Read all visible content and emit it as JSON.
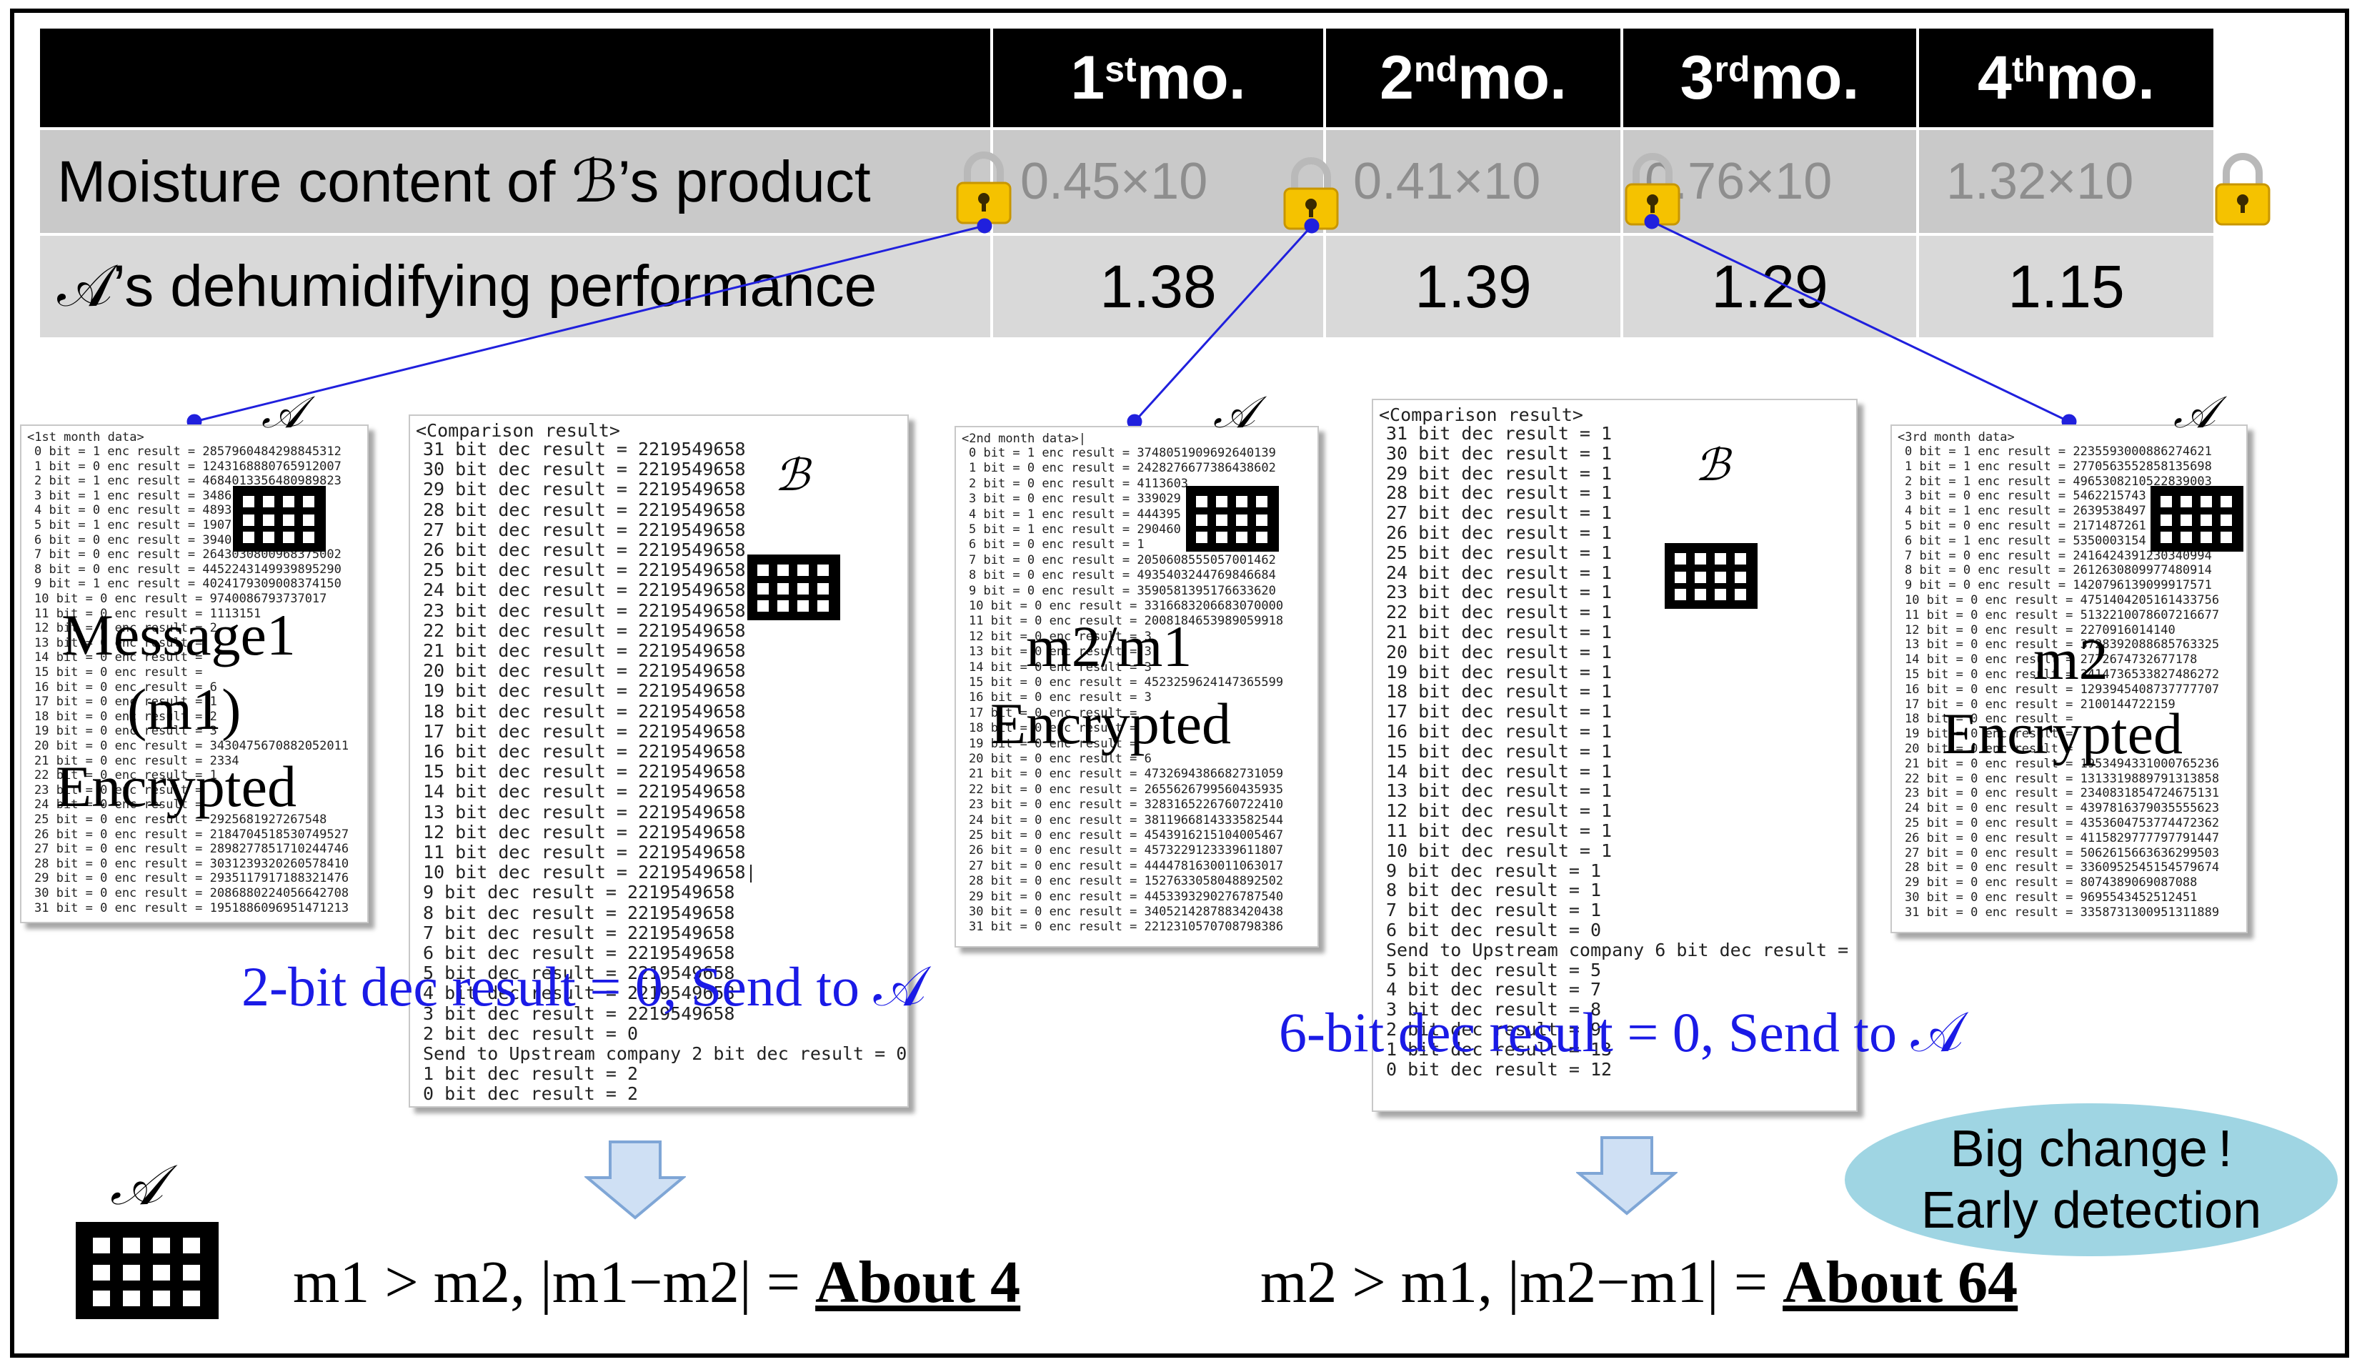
{
  "table": {
    "headers": [
      "",
      "1",
      "2",
      "3",
      "4"
    ],
    "header_suffix": [
      "",
      "st",
      "nd",
      "rd",
      "th"
    ],
    "header_unit": [
      "",
      " mo.",
      " mo.",
      " mo.",
      " mo."
    ],
    "row1_label": "Moisture content of ℬ’s product",
    "row1_values": [
      "0.45×10",
      "0.41×10",
      "0.76×10",
      "1.32×10"
    ],
    "row2_label": "𝒜’s dehumidifying performance",
    "row2_values": [
      "1.38",
      "1.39",
      "1.29",
      "1.15"
    ]
  },
  "panels": {
    "p1": {
      "header": "<1st month data>",
      "owner": "𝒜",
      "lines": [
        "0 bit = 1 enc result = 2857960484298845312",
        "1 bit = 0 enc result = 1243168880765912007",
        "2 bit = 1 enc result = 4684013356480989823",
        "3 bit = 1 enc result = 3486",
        "4 bit = 0 enc result = 4893",
        "5 bit = 1 enc result = 1907",
        "6 bit = 0 enc result = 3940",
        "7 bit = 0 enc result = 2643030800968375002",
        "8 bit = 0 enc result = 4452243149939895290",
        "9 bit = 1 enc result = 4024179309008374150",
        "10 bit = 0 enc result = 9740086793737017",
        "11 bit = 0 enc result = 1113151",
        "12 bit = 0 enc result = 2",
        "13 bit = 0 enc result =",
        "14 bit = 0 enc result =",
        "15 bit = 0 enc result =",
        "16 bit = 0 enc result = 6",
        "17 bit = 0 enc result = 1",
        "18 bit = 0 enc result = 2",
        "19 bit = 0 enc result = 3",
        "20 bit = 0 enc result = 3430475670882052011",
        "21 bit = 0 enc result = 2334",
        "22 bit = 0 enc result = 1",
        "23 bit = 0 enc result =",
        "24 bit = 0 enc result =",
        "25 bit = 0 enc result = 2925681927267548",
        "26 bit = 0 enc result = 2184704518530749527",
        "27 bit = 0 enc result = 2898277851710244746",
        "28 bit = 0 enc result = 3031239320260578410",
        "29 bit = 0 enc result = 2935117917188321476",
        "30 bit = 0 enc result = 2086880224056642708",
        "31 bit = 0 enc result = 1951886096951471213"
      ],
      "overlay": [
        "Message1",
        "(m1)",
        "Encrypted"
      ]
    },
    "p2": {
      "header": "<Comparison result>",
      "owner": "ℬ",
      "lines": [
        "31 bit dec result = 2219549658",
        "30 bit dec result = 2219549658",
        "29 bit dec result = 2219549658",
        "28 bit dec result = 2219549658",
        "27 bit dec result = 2219549658",
        "26 bit dec result = 2219549658",
        "25 bit dec result = 2219549658",
        "24 bit dec result = 2219549658",
        "23 bit dec result = 2219549658",
        "22 bit dec result = 2219549658",
        "21 bit dec result = 2219549658",
        "20 bit dec result = 2219549658",
        "19 bit dec result = 2219549658",
        "18 bit dec result = 2219549658",
        "17 bit dec result = 2219549658",
        "16 bit dec result = 2219549658",
        "15 bit dec result = 2219549658",
        "14 bit dec result = 2219549658",
        "13 bit dec result = 2219549658",
        "12 bit dec result = 2219549658",
        "11 bit dec result = 2219549658",
        "10 bit dec result = 2219549658|",
        "9 bit dec result = 2219549658",
        "8 bit dec result = 2219549658",
        "7 bit dec result = 2219549658",
        "6 bit dec result = 2219549658",
        "5 bit dec result = 2219549658",
        "4 bit dec result = 2219549658",
        "3 bit dec result = 2219549658",
        "2 bit dec result = 0",
        "Send to Upstream company 2 bit dec result = 0",
        "1 bit dec result = 2",
        "0 bit dec result = 2"
      ]
    },
    "p3": {
      "header": "<2nd month data>|",
      "owner": "𝒜",
      "lines": [
        "0 bit = 1 enc result = 3748051909692640139",
        "1 bit = 0 enc result = 2428276677386438602",
        "2 bit = 0 enc result = 4113603",
        "3 bit = 0 enc result = 339029",
        "4 bit = 1 enc result = 444395",
        "5 bit = 1 enc result = 290460",
        "6 bit = 0 enc result = 1",
        "7 bit = 0 enc result = 2050608555057001462",
        "8 bit = 0 enc result = 4935403244769846684",
        "9 bit = 0 enc result = 3590581395176633620",
        "10 bit = 0 enc result = 3316683206683070000",
        "11 bit = 0 enc result = 2008184653989059918",
        "12 bit = 0 enc result = 3",
        "13 bit = 0 enc result = 3",
        "14 bit = 0 enc result = 3",
        "15 bit = 0 enc result = 4523259624147365599",
        "16 bit = 0 enc result = 3",
        "17 bit = 0 enc result =",
        "18 bit = 0 enc result =",
        "19 bit = 0 enc result =",
        "20 bit = 0 enc result = 6",
        "21 bit = 0 enc result = 4732694386682731059",
        "22 bit = 0 enc result = 2655626799560435935",
        "23 bit = 0 enc result = 3283165226760722410",
        "24 bit = 0 enc result = 3811966814333582544",
        "25 bit = 0 enc result = 4543916215104005467",
        "26 bit = 0 enc result = 4573229123339611807",
        "27 bit = 0 enc result = 4444781630011063017",
        "28 bit = 0 enc result = 1527633058048892502",
        "29 bit = 0 enc result = 4453393290276787540",
        "30 bit = 0 enc result = 3405214287883420438",
        "31 bit = 0 enc result = 2212310570708798386"
      ],
      "overlay": [
        "m2/m1",
        "Encrypted"
      ]
    },
    "p4": {
      "header": "<Comparison result>",
      "owner": "ℬ",
      "lines": [
        "31 bit dec result = 1",
        "30 bit dec result = 1",
        "29 bit dec result = 1",
        "28 bit dec result = 1",
        "27 bit dec result = 1",
        "26 bit dec result = 1",
        "25 bit dec result = 1",
        "24 bit dec result = 1",
        "23 bit dec result = 1",
        "22 bit dec result = 1",
        "21 bit dec result = 1",
        "20 bit dec result = 1",
        "19 bit dec result = 1",
        "18 bit dec result = 1",
        "17 bit dec result = 1",
        "16 bit dec result = 1",
        "15 bit dec result = 1",
        "14 bit dec result = 1",
        "13 bit dec result = 1",
        "12 bit dec result = 1",
        "11 bit dec result = 1",
        "10 bit dec result = 1",
        "9 bit dec result = 1",
        "8 bit dec result = 1",
        "7 bit dec result = 1",
        "6 bit dec result = 0",
        "Send to Upstream company 6 bit dec result = 0",
        "5 bit dec result = 5",
        "4 bit dec result = 7",
        "3 bit dec result = 8",
        "2 bit dec result = 9",
        "1 bit dec result = 13",
        "0 bit dec result = 12"
      ]
    },
    "p5": {
      "header": "<3rd month data>",
      "owner": "𝒜",
      "lines": [
        "0 bit = 1 enc result = 2235593000886274621",
        "1 bit = 1 enc result = 2770563552858135698",
        "2 bit = 1 enc result = 4965308210522839003",
        "3 bit = 0 enc result = 5462215743",
        "4 bit = 1 enc result = 2639538497",
        "5 bit = 0 enc result = 2171487261",
        "6 bit = 1 enc result = 5350003154",
        "7 bit = 0 enc result = 2416424391230340994",
        "8 bit = 0 enc result = 2612630809977480914",
        "9 bit = 0 enc result = 1420796139099917571",
        "10 bit = 0 enc result = 4751404205161433756",
        "11 bit = 0 enc result = 5132210078607216677",
        "12 bit = 0 enc result = 2270916014140",
        "13 bit = 0 enc result = 3728392088685763325",
        "14 bit = 0 enc result = 2772674732677178",
        "15 bit = 0 enc result = 3414736533827486272",
        "16 bit = 0 enc result = 1293945408737777707",
        "17 bit = 0 enc result = 2100144722159",
        "18 bit = 0 enc result =",
        "19 bit = 0 enc result =",
        "20 bit = 0 enc result =",
        "21 bit = 0 enc result = 1953494331000765236",
        "22 bit = 0 enc result = 1313319889791313858",
        "23 bit = 0 enc result = 2340831854724675131",
        "24 bit = 0 enc result = 4397816379035555623",
        "25 bit = 0 enc result = 4353604753774472362",
        "26 bit = 0 enc result = 4115829777797791447",
        "27 bit = 0 enc result = 5062615663636299503",
        "28 bit = 0 enc result = 3360952545154579674",
        "29 bit = 0 enc result = 8074389069087088",
        "30 bit = 0 enc result = 9695543452512451",
        "31 bit = 0 enc result = 3358731300951311889"
      ],
      "overlay": [
        "m2",
        "Encrypted"
      ]
    }
  },
  "annotations": {
    "send1": "2-bit dec result = 0, Send to 𝒜",
    "send2": "6-bit dec result = 0, Send to 𝒜",
    "concl1_prefix": "m1 > m2, |m1−m2| = ",
    "concl1_bold": "About 4",
    "concl2_prefix": "m2 > m1, |m2−m1| = ",
    "concl2_bold": "About 64",
    "bottom_owner": "𝒜",
    "bubble_line1": "Big change !",
    "bubble_line2": "Early detection"
  },
  "colors": {
    "header_bg": "#000000",
    "row1_bg": "#c9c9c9",
    "row2_bg": "#d9d9d9",
    "annotation_blue": "#1a1ae6",
    "connector_blue": "#2020dd",
    "arrow_fill": "#cfe0f4",
    "bubble": "#9fd5e3",
    "lock": "#f5c200"
  },
  "icons": [
    "lock-icon",
    "building-icon",
    "down-arrow-icon"
  ]
}
